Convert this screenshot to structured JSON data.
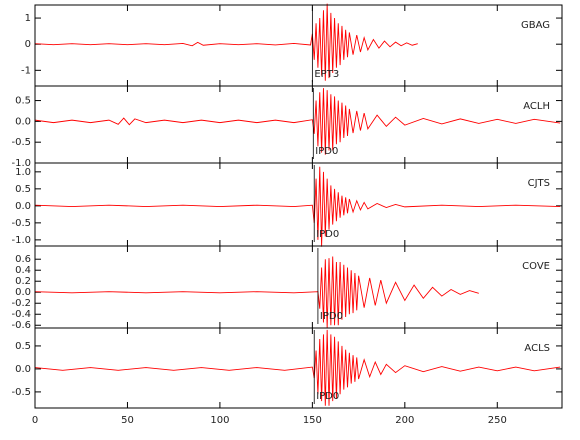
{
  "chart_data": [
    {
      "type": "line",
      "xlim": [
        0,
        285
      ],
      "ylim": [
        -1.6,
        1.5
      ],
      "yticks": [
        1,
        0,
        -1
      ],
      "station": "GBAG",
      "pick": {
        "x": 150,
        "label": "EPT3"
      },
      "series": [
        {
          "color": "#ff0000",
          "x": [
            0,
            10,
            20,
            30,
            40,
            50,
            60,
            70,
            80,
            85,
            88,
            91,
            100,
            110,
            120,
            130,
            140,
            149,
            150,
            151,
            152,
            153,
            154,
            155,
            156,
            157,
            158,
            159,
            160,
            161,
            162,
            163,
            164,
            165,
            166,
            167,
            168,
            169,
            170,
            172,
            174,
            176,
            178,
            180,
            183,
            186,
            189,
            192,
            195,
            198,
            201,
            204,
            207
          ],
          "values": [
            0.02,
            -0.02,
            0.02,
            -0.02,
            0.02,
            -0.02,
            0.02,
            -0.02,
            0.03,
            -0.06,
            0.07,
            -0.04,
            0.02,
            -0.02,
            0.02,
            -0.03,
            0.03,
            -0.03,
            0.4,
            -0.6,
            0.8,
            -0.9,
            1.0,
            -1.2,
            1.3,
            -1.4,
            1.55,
            -1.3,
            1.2,
            -1.1,
            1.0,
            -0.9,
            0.8,
            -0.8,
            0.7,
            -0.6,
            0.55,
            -0.5,
            0.45,
            -0.4,
            0.35,
            -0.3,
            0.25,
            -0.22,
            0.18,
            -0.15,
            0.12,
            -0.1,
            0.08,
            -0.06,
            0.05,
            -0.04,
            0.02
          ]
        }
      ]
    },
    {
      "type": "line",
      "xlim": [
        0,
        285
      ],
      "ylim": [
        -1.0,
        0.85
      ],
      "yticks": [
        0.5,
        {
          "value": 0,
          "label": "0.0"
        },
        -0.5,
        {
          "value": -1,
          "label": "-1.0"
        }
      ],
      "station": "ACLH",
      "pick": {
        "x": 150.5,
        "label": "IPD0"
      },
      "series": [
        {
          "color": "#ff0000",
          "x": [
            0,
            10,
            20,
            30,
            40,
            45,
            48,
            51,
            54,
            60,
            70,
            80,
            90,
            100,
            110,
            120,
            130,
            140,
            150,
            151,
            152,
            153,
            154,
            155,
            156,
            157,
            158,
            159,
            160,
            161,
            162,
            163,
            164,
            165,
            166,
            167,
            168,
            169,
            170,
            172,
            174,
            176,
            178,
            180,
            185,
            190,
            195,
            200,
            210,
            220,
            230,
            240,
            250,
            260,
            270,
            284
          ],
          "values": [
            0.03,
            -0.03,
            0.03,
            -0.03,
            0.03,
            -0.07,
            0.08,
            -0.08,
            0.06,
            -0.03,
            0.03,
            -0.03,
            0.03,
            -0.03,
            0.03,
            -0.03,
            0.03,
            -0.03,
            0.04,
            -0.3,
            0.5,
            -0.6,
            0.7,
            -0.75,
            0.8,
            -0.8,
            0.75,
            -0.7,
            0.65,
            -0.7,
            0.6,
            -0.55,
            0.5,
            -0.5,
            0.45,
            -0.4,
            0.38,
            -0.35,
            0.3,
            -0.28,
            0.25,
            -0.22,
            0.2,
            -0.18,
            0.15,
            -0.12,
            0.1,
            -0.09,
            0.07,
            -0.06,
            0.06,
            -0.05,
            0.05,
            -0.05,
            0.05,
            -0.04
          ]
        }
      ]
    },
    {
      "type": "line",
      "xlim": [
        0,
        285
      ],
      "ylim": [
        -1.18,
        1.26
      ],
      "yticks": [
        {
          "value": 1,
          "label": "1.0"
        },
        0.5,
        {
          "value": 0,
          "label": "0.0"
        },
        -0.5,
        {
          "value": -1,
          "label": "-1.0"
        }
      ],
      "station": "CJTS",
      "pick": {
        "x": 151,
        "label": "IPD0"
      },
      "series": [
        {
          "color": "#ff0000",
          "x": [
            0,
            20,
            40,
            60,
            80,
            100,
            120,
            140,
            150,
            151,
            152,
            153,
            154,
            155,
            156,
            157,
            158,
            159,
            160,
            161,
            162,
            163,
            164,
            165,
            166,
            167,
            168,
            169,
            170,
            172,
            174,
            176,
            178,
            180,
            185,
            190,
            195,
            200,
            220,
            240,
            260,
            284
          ],
          "values": [
            0.02,
            -0.02,
            0.02,
            -0.02,
            0.02,
            -0.02,
            0.02,
            -0.02,
            0.02,
            -0.5,
            0.8,
            -1.0,
            1.15,
            -1.2,
            1.0,
            -0.9,
            0.8,
            -0.7,
            0.6,
            -0.55,
            0.5,
            -0.45,
            0.4,
            -0.35,
            0.3,
            -0.28,
            0.25,
            -0.22,
            0.2,
            -0.18,
            0.15,
            -0.12,
            0.1,
            -0.09,
            0.07,
            -0.05,
            0.04,
            -0.03,
            0.02,
            -0.02,
            0.02,
            -0.02
          ]
        }
      ]
    },
    {
      "type": "line",
      "xlim": [
        0,
        285
      ],
      "ylim": [
        -0.65,
        0.84
      ],
      "yticks": [
        0.6,
        0.4,
        0.2,
        {
          "value": 0,
          "label": "0.0"
        },
        -0.2,
        -0.4,
        -0.6
      ],
      "station": "COVE",
      "pick": {
        "x": 153,
        "label": "IPD0"
      },
      "series": [
        {
          "color": "#ff0000",
          "x": [
            0,
            20,
            40,
            60,
            80,
            100,
            120,
            140,
            153,
            154,
            155,
            156,
            157,
            158,
            159,
            160,
            161,
            162,
            163,
            164,
            165,
            166,
            167,
            168,
            169,
            170,
            171,
            172,
            173,
            174,
            175,
            178,
            181,
            184,
            187,
            190,
            195,
            200,
            205,
            210,
            215,
            220,
            225,
            230,
            235,
            240
          ],
          "values": [
            0.01,
            -0.01,
            0.01,
            -0.01,
            0.01,
            -0.01,
            0.01,
            -0.01,
            0.01,
            -0.3,
            0.45,
            -0.55,
            0.6,
            -0.65,
            0.62,
            -0.6,
            0.65,
            -0.6,
            0.55,
            -0.6,
            0.55,
            -0.5,
            0.5,
            -0.45,
            0.45,
            -0.4,
            0.4,
            -0.38,
            0.35,
            -0.33,
            0.3,
            -0.28,
            0.26,
            -0.24,
            0.22,
            -0.2,
            0.18,
            -0.15,
            0.13,
            -0.11,
            0.09,
            -0.07,
            0.05,
            -0.04,
            0.03,
            -0.02
          ]
        }
      ]
    },
    {
      "type": "line",
      "xlim": [
        0,
        285
      ],
      "ylim": [
        -0.85,
        0.89
      ],
      "yticks": [
        0.5,
        {
          "value": 0,
          "label": "0.0"
        },
        -0.5
      ],
      "xticks": [
        0,
        50,
        100,
        150,
        200,
        250
      ],
      "station": "ACLS",
      "pick": {
        "x": 151,
        "label": "IPD0"
      },
      "series": [
        {
          "color": "#ff0000",
          "x": [
            0,
            15,
            30,
            45,
            60,
            75,
            90,
            105,
            120,
            135,
            150,
            151,
            152,
            153,
            154,
            155,
            156,
            157,
            158,
            159,
            160,
            161,
            162,
            163,
            164,
            165,
            166,
            167,
            168,
            169,
            170,
            171,
            172,
            173,
            174,
            175,
            178,
            181,
            184,
            187,
            190,
            195,
            200,
            210,
            220,
            230,
            240,
            250,
            260,
            270,
            284
          ],
          "values": [
            0.03,
            -0.03,
            0.03,
            -0.03,
            0.03,
            -0.03,
            0.03,
            -0.03,
            0.03,
            -0.03,
            0.04,
            -0.2,
            0.4,
            -0.55,
            0.65,
            -0.7,
            0.75,
            -0.8,
            0.85,
            -0.8,
            0.75,
            -0.7,
            0.7,
            -0.65,
            0.6,
            -0.55,
            0.5,
            -0.45,
            0.42,
            -0.4,
            0.35,
            -0.32,
            0.3,
            -0.28,
            0.25,
            -0.22,
            0.2,
            -0.17,
            0.15,
            -0.12,
            0.1,
            -0.08,
            0.07,
            -0.06,
            0.05,
            -0.05,
            0.04,
            -0.04,
            0.04,
            -0.04,
            0.04
          ]
        }
      ]
    }
  ]
}
